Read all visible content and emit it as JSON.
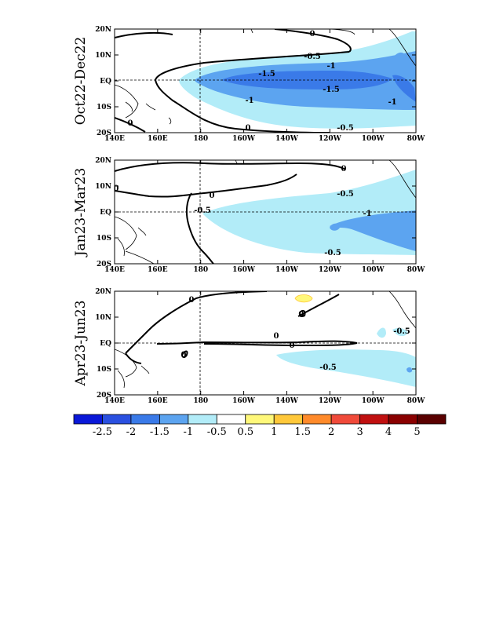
{
  "chart_data": {
    "type": "heatmap",
    "panels": [
      {
        "period_label": "Oct22-Dec22",
        "xlim": [
          "140E",
          "80W"
        ],
        "ylim": [
          "20S",
          "20N"
        ],
        "contour_labels": [
          "0",
          "0",
          "0",
          "-0.5",
          "-1",
          "-1.5",
          "-1.5",
          "-1",
          "-1",
          "-0.5"
        ],
        "shaded_levels": [
          -0.5,
          -1,
          -1.5
        ]
      },
      {
        "period_label": "Jan23-Mar23",
        "xlim": [
          "140E",
          "80W"
        ],
        "ylim": [
          "20S",
          "20N"
        ],
        "contour_labels": [
          "0",
          "0",
          "0",
          "-0.5",
          "-0.5",
          "-1",
          "-0.5"
        ],
        "shaded_levels": [
          -0.5,
          -1
        ]
      },
      {
        "period_label": "Apr23-Jun23",
        "xlim": [
          "140E",
          "80W"
        ],
        "ylim": [
          "20S",
          "20N"
        ],
        "contour_labels": [
          "0",
          "0",
          "0",
          "0",
          "0",
          "-0.5",
          "-0.5"
        ],
        "shaded_levels": [
          -0.5,
          0.5
        ]
      }
    ],
    "x_tick_labels": [
      "140E",
      "160E",
      "180",
      "160W",
      "140W",
      "120W",
      "100W",
      "80W"
    ],
    "y_tick_labels": [
      "20N",
      "10N",
      "EQ",
      "10S",
      "20S"
    ],
    "colorbar": {
      "colors": [
        "#0a18d8",
        "#2a50e0",
        "#3a7ae8",
        "#5ca4f0",
        "#b2ecf8",
        "#ffffff",
        "#fff87a",
        "#ffc83a",
        "#ff8a2a",
        "#f04a3a",
        "#c01010",
        "#8a0000",
        "#5a0000"
      ],
      "labels": [
        "-2.5",
        "-2",
        "-1.5",
        "-1",
        "-0.5",
        "0.5",
        "1",
        "1.5",
        "2",
        "3",
        "4",
        "5"
      ]
    }
  }
}
